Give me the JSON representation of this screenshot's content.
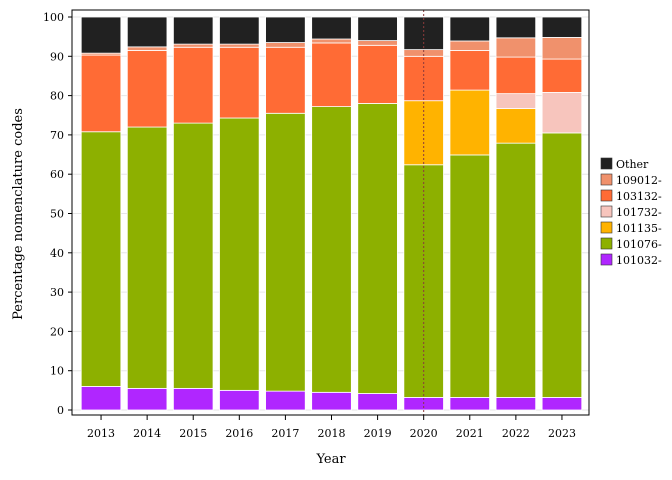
{
  "chart_data": {
    "type": "bar",
    "stacked": true,
    "xlabel": "Year",
    "ylabel": "Percentage nomenclature codes",
    "ylim": [
      0,
      100
    ],
    "yticks": [
      0,
      10,
      20,
      30,
      40,
      50,
      60,
      70,
      80,
      90,
      100
    ],
    "grid": true,
    "legend_position": "right",
    "reference_line": {
      "x": "2020",
      "style": "dotted",
      "color": "#8b3a3a"
    },
    "categories": [
      "2013",
      "2014",
      "2015",
      "2016",
      "2017",
      "2018",
      "2019",
      "2020",
      "2021",
      "2022",
      "2023"
    ],
    "series": [
      {
        "name": "101032-",
        "color": "#b026ff",
        "values": [
          6.0,
          5.5,
          5.5,
          5.0,
          4.8,
          4.5,
          4.2,
          3.2,
          3.2,
          3.2,
          3.2
        ]
      },
      {
        "name": "101076-",
        "color": "#8db000",
        "values": [
          64.8,
          66.5,
          67.5,
          69.3,
          70.7,
          72.7,
          73.8,
          59.2,
          61.7,
          64.7,
          67.3
        ]
      },
      {
        "name": "101135-",
        "color": "#ffb300",
        "values": [
          0,
          0,
          0,
          0,
          0,
          0,
          0,
          16.3,
          16.5,
          8.8,
          0
        ]
      },
      {
        "name": "101732-",
        "color": "#f7c5bd",
        "values": [
          0,
          0,
          0,
          0,
          0,
          0,
          0,
          0,
          0,
          3.8,
          10.3
        ]
      },
      {
        "name": "103132-",
        "color": "#ff6b35",
        "values": [
          19.5,
          19.5,
          19.3,
          18.0,
          16.8,
          16.2,
          14.8,
          11.3,
          10.1,
          9.3,
          8.5
        ]
      },
      {
        "name": "109012-",
        "color": "#f0916c",
        "values": [
          0.5,
          0.9,
          0.8,
          0.8,
          1.2,
          1.0,
          1.2,
          1.7,
          2.4,
          4.9,
          5.5
        ]
      },
      {
        "name": "Other",
        "color": "#212121",
        "values": [
          9.2,
          7.6,
          6.9,
          6.9,
          6.5,
          5.6,
          6.0,
          8.3,
          6.1,
          5.3,
          5.2
        ]
      }
    ],
    "legend_order": [
      "Other",
      "109012-",
      "103132-",
      "101732-",
      "101135-",
      "101076-",
      "101032-"
    ]
  }
}
